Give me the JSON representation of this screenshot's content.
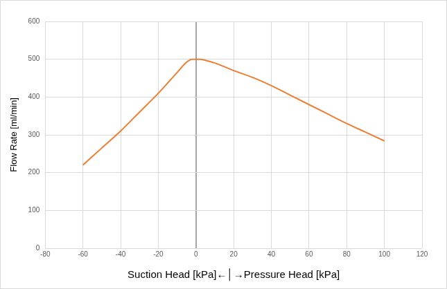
{
  "chart_data": {
    "type": "line",
    "x_label": "Suction Head [kPa]←│→Pressure Head [kPa]",
    "y_label": "Flow Rate [ml/min]",
    "x": [
      -60,
      -50,
      -40,
      -30,
      -20,
      -10,
      -5,
      -2,
      0,
      2,
      5,
      10,
      20,
      30,
      40,
      50,
      60,
      70,
      80,
      90,
      100
    ],
    "values": [
      220,
      265,
      310,
      360,
      410,
      465,
      492,
      500,
      500,
      500,
      497,
      490,
      470,
      452,
      430,
      405,
      380,
      355,
      330,
      307,
      284
    ],
    "color": "#ed7d31",
    "xlim": [
      -80,
      120
    ],
    "xticks": [
      -80,
      -60,
      -40,
      -20,
      0,
      20,
      40,
      60,
      80,
      100,
      120
    ],
    "ylim": [
      0,
      600
    ],
    "yticks": [
      0,
      100,
      200,
      300,
      400,
      500,
      600
    ],
    "grid": true
  }
}
